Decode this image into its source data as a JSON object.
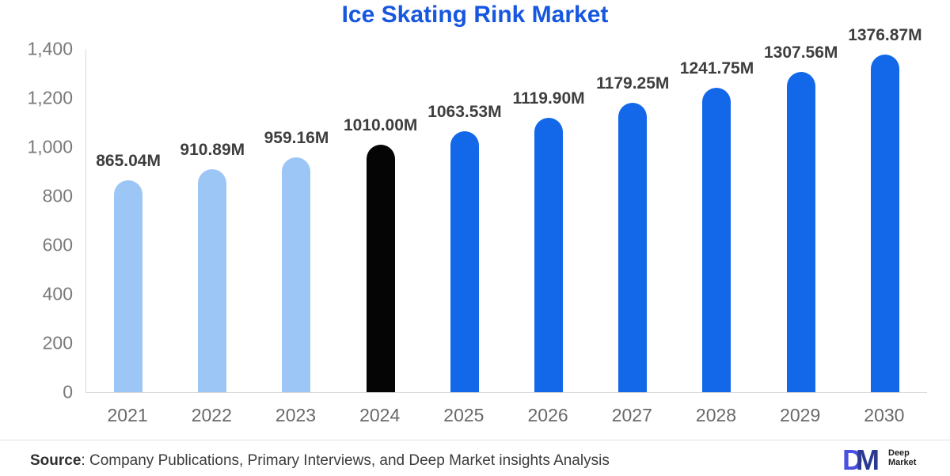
{
  "title": "Ice Skating Rink Market",
  "chart_data": {
    "type": "bar",
    "title": "Ice Skating Rink Market",
    "categories": [
      "2021",
      "2022",
      "2023",
      "2024",
      "2025",
      "2026",
      "2027",
      "2028",
      "2029",
      "2030"
    ],
    "values": [
      865.04,
      910.89,
      959.16,
      1010.0,
      1063.53,
      1119.9,
      1179.25,
      1241.75,
      1307.56,
      1376.87
    ],
    "value_labels": [
      "865.04M",
      "910.89M",
      "959.16M",
      "1010.00M",
      "1063.53M",
      "1119.90M",
      "1179.25M",
      "1241.75M",
      "1307.56M",
      "1376.87M"
    ],
    "bar_colors": [
      "#9CC6F6",
      "#9CC6F6",
      "#9CC6F6",
      "#050505",
      "#1268E8",
      "#1268E8",
      "#1268E8",
      "#1268E8",
      "#1268E8",
      "#1268E8"
    ],
    "xlabel": "",
    "ylabel": "",
    "ylim": [
      0,
      1400
    ],
    "yticks": [
      {
        "value": 0,
        "label": "0"
      },
      {
        "value": 200,
        "label": "200"
      },
      {
        "value": 400,
        "label": "400"
      },
      {
        "value": 600,
        "label": "600"
      },
      {
        "value": 800,
        "label": "800"
      },
      {
        "value": 1000,
        "label": "1,000"
      },
      {
        "value": 1200,
        "label": "1,200"
      },
      {
        "value": 1400,
        "label": "1,400"
      }
    ],
    "grid": false,
    "legend": "none"
  },
  "colors": {
    "title": "#1757E0",
    "light_bar": "#9CC6F6",
    "black_bar": "#050505",
    "blue_bar": "#1268E8",
    "axis_line": "#D8D8D8",
    "y_tick_label": "#7A7A7A",
    "x_tick_label": "#696969",
    "value_label": "#3E3E3E"
  },
  "footer": {
    "source_label": "Source",
    "source_rest": ": Company Publications, Primary Interviews, and Deep Market insights Analysis",
    "logo": {
      "letter_d": "D",
      "letter_m": "M",
      "d_color": "#4A50DF",
      "m_color": "#2B3A90",
      "name_line1": "Deep",
      "name_line2": "Market"
    }
  }
}
